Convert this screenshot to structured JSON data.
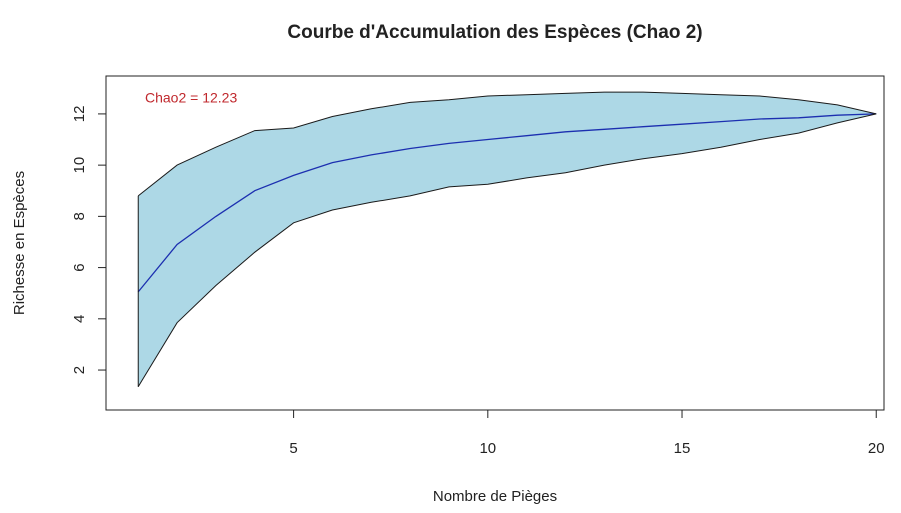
{
  "chart_data": {
    "type": "line",
    "title": "Courbe d'Accumulation des Espèces (Chao 2)",
    "xlabel": "Nombre de Pièges",
    "ylabel": "Richesse en Espèces",
    "annotation": {
      "text": "Chao2 = 12.23",
      "color": "#c0282d"
    },
    "x": [
      1,
      2,
      3,
      4,
      5,
      6,
      7,
      8,
      9,
      10,
      11,
      12,
      13,
      14,
      15,
      16,
      17,
      18,
      19,
      20
    ],
    "band": {
      "color": "#add8e6",
      "edge": "#1a1a1a"
    },
    "series": [
      {
        "color": "#1c2fb0",
        "values": [
          5.05,
          6.9,
          8.0,
          9.0,
          9.6,
          10.1,
          10.4,
          10.65,
          10.85,
          11.0,
          11.15,
          11.3,
          11.4,
          11.5,
          11.6,
          11.7,
          11.8,
          11.85,
          11.95,
          12.0
        ]
      },
      {
        "color": "#1a1a1a",
        "values": [
          8.8,
          10.0,
          10.7,
          11.35,
          11.45,
          11.9,
          12.2,
          12.45,
          12.55,
          12.7,
          12.75,
          12.8,
          12.85,
          12.85,
          12.8,
          12.75,
          12.7,
          12.55,
          12.35,
          12.0
        ]
      },
      {
        "color": "#1a1a1a",
        "values": [
          1.35,
          3.85,
          5.3,
          6.6,
          7.75,
          8.25,
          8.55,
          8.8,
          9.15,
          9.25,
          9.5,
          9.7,
          10.0,
          10.25,
          10.45,
          10.7,
          11.0,
          11.25,
          11.65,
          12.0
        ]
      }
    ],
    "xlim": [
      0.17,
      20.2
    ],
    "ylim": [
      0.44,
      13.48
    ],
    "xticks": [
      5,
      10,
      15,
      20
    ],
    "yticks": [
      2,
      4,
      6,
      8,
      10,
      12
    ],
    "grid": false
  }
}
